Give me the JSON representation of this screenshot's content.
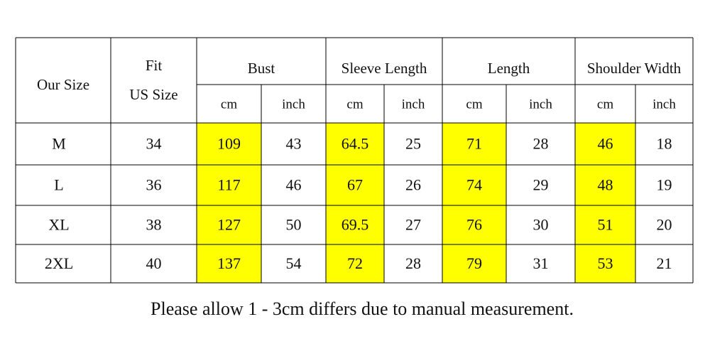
{
  "table": {
    "header": {
      "size": "Our Size",
      "fit": [
        "Fit",
        "US Size"
      ],
      "groups": [
        "Bust",
        "Sleeve Length",
        "Length",
        "Shoulder Width"
      ],
      "units": [
        "cm",
        "inch",
        "cm",
        "inch",
        "cm",
        "inch",
        "cm",
        "inch"
      ]
    },
    "rows": [
      [
        "M",
        "34",
        "109",
        "43",
        "64.5",
        "25",
        "71",
        "28",
        "46",
        "18"
      ],
      [
        "L",
        "36",
        "117",
        "46",
        "67",
        "26",
        "74",
        "29",
        "48",
        "19"
      ],
      [
        "XL",
        "38",
        "127",
        "50",
        "69.5",
        "27",
        "76",
        "30",
        "51",
        "20"
      ],
      [
        "2XL",
        "40",
        "137",
        "54",
        "72",
        "28",
        "79",
        "31",
        "53",
        "21"
      ]
    ]
  },
  "note": "Please allow 1 - 3cm differs due to manual measurement."
}
